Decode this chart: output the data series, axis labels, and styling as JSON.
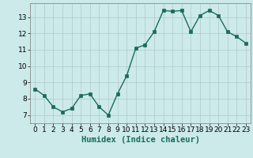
{
  "x": [
    0,
    1,
    2,
    3,
    4,
    5,
    6,
    7,
    8,
    9,
    10,
    11,
    12,
    13,
    14,
    15,
    16,
    17,
    18,
    19,
    20,
    21,
    22,
    23
  ],
  "y": [
    8.6,
    8.2,
    7.5,
    7.2,
    7.4,
    8.2,
    8.3,
    7.5,
    7.0,
    8.3,
    9.4,
    11.1,
    11.3,
    12.1,
    13.4,
    13.35,
    13.4,
    12.1,
    13.1,
    13.4,
    13.1,
    12.1,
    11.8,
    11.4
  ],
  "line_color": "#1a6b5a",
  "marker_color": "#1a6b5a",
  "bg_color": "#cceaea",
  "grid_color": "#b0c8c8",
  "xlabel": "Humidex (Indice chaleur)",
  "xlim": [
    -0.5,
    23.5
  ],
  "ylim": [
    6.5,
    13.85
  ],
  "yticks": [
    7,
    8,
    9,
    10,
    11,
    12,
    13
  ],
  "xticks": [
    0,
    1,
    2,
    3,
    4,
    5,
    6,
    7,
    8,
    9,
    10,
    11,
    12,
    13,
    14,
    15,
    16,
    17,
    18,
    19,
    20,
    21,
    22,
    23
  ],
  "xlabel_fontsize": 7.5,
  "tick_fontsize": 6.5,
  "linewidth": 1.0,
  "markersize": 2.5
}
